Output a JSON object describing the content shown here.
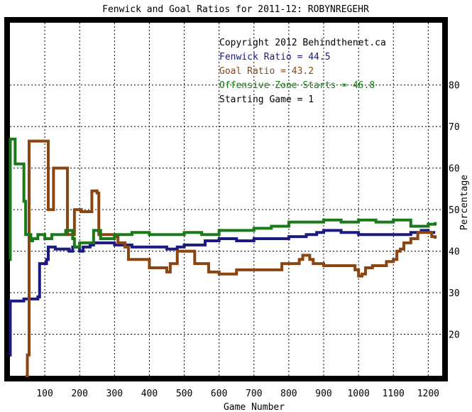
{
  "chart_data": {
    "type": "line",
    "title": "Fenwick and Goal Ratios for 2011-12: ROBYNREGEHR",
    "xlabel": "Game Number",
    "ylabel": "Percentage",
    "xlim": [
      0,
      1240
    ],
    "ylim": [
      10,
      95
    ],
    "x_ticks": [
      100,
      200,
      300,
      400,
      500,
      600,
      700,
      800,
      900,
      1000,
      1100,
      1200
    ],
    "y_ticks": [
      20,
      30,
      40,
      50,
      60,
      70,
      80
    ],
    "x_tick_labels": [
      "100",
      "200",
      "300",
      "400",
      "500",
      "600",
      "700",
      "800",
      "900",
      "1000",
      "1100",
      "1200"
    ],
    "y_tick_labels": [
      "20",
      "30",
      "40",
      "50",
      "60",
      "70",
      "80"
    ],
    "grid": true,
    "annotations": [
      {
        "text": "Copyright 2012 Behindthenet.ca",
        "color": "#000000"
      },
      {
        "text": "Fenwick Ratio = 44.5",
        "color": "#1a1a80"
      },
      {
        "text": "Goal Ratio = 43.2",
        "color": "#8b4513"
      },
      {
        "text": "Offensive Zone Starts = 46.8",
        "color": "#1a7a1a"
      },
      {
        "text": "Starting Game = 1",
        "color": "#000000"
      }
    ],
    "series": [
      {
        "color": "#1a1a80",
        "x": [
          0,
          1,
          35,
          40,
          80,
          85,
          105,
          110,
          130,
          140,
          170,
          180,
          200,
          210,
          230,
          240,
          300,
          350,
          400,
          450,
          480,
          500,
          560,
          600,
          650,
          700,
          750,
          800,
          850,
          880,
          900,
          950,
          1000,
          1050,
          1100,
          1150,
          1180,
          1200,
          1220
        ],
        "values": [
          15,
          28,
          28,
          28.5,
          29,
          37,
          38,
          41,
          40.5,
          40.5,
          40,
          41,
          40,
          41,
          41.5,
          42,
          41.5,
          41,
          41,
          40.5,
          41,
          41.5,
          42.5,
          43,
          42.5,
          43,
          43,
          43.5,
          44,
          44.5,
          45,
          44.5,
          44,
          44,
          44,
          44.5,
          45,
          44.5,
          44.5
        ]
      },
      {
        "color": "#8b4513",
        "x": [
          45,
          50,
          55,
          105,
          110,
          120,
          125,
          160,
          165,
          180,
          185,
          200,
          205,
          230,
          235,
          250,
          255,
          300,
          310,
          330,
          340,
          400,
          410,
          450,
          460,
          480,
          490,
          530,
          540,
          570,
          580,
          600,
          650,
          700,
          750,
          780,
          800,
          830,
          840,
          860,
          870,
          900,
          950,
          990,
          1000,
          1010,
          1020,
          1040,
          1050,
          1080,
          1100,
          1110,
          1120,
          1130,
          1150,
          1170,
          1190,
          1210,
          1220
        ],
        "values": [
          10,
          15,
          66.5,
          66.5,
          50,
          50,
          60,
          60,
          44,
          44,
          50,
          50,
          49.5,
          49.5,
          54.5,
          54,
          44,
          43.5,
          42,
          41,
          38,
          36,
          36,
          35,
          37,
          40,
          40,
          37,
          37,
          35,
          35,
          34.5,
          35.5,
          35.5,
          35.5,
          37,
          37,
          38,
          39,
          38,
          37,
          36.5,
          36.5,
          35.5,
          34,
          34.5,
          36,
          36.5,
          36.5,
          37.5,
          38,
          40,
          40.5,
          42,
          43,
          44.5,
          44.5,
          43.5,
          43
        ]
      },
      {
        "color": "#1a7a1a",
        "x": [
          0,
          1,
          10,
          15,
          35,
          40,
          45,
          55,
          60,
          65,
          80,
          100,
          120,
          160,
          180,
          185,
          200,
          220,
          240,
          260,
          280,
          300,
          350,
          400,
          450,
          500,
          550,
          600,
          650,
          700,
          750,
          800,
          850,
          900,
          950,
          1000,
          1050,
          1100,
          1150,
          1200,
          1220
        ],
        "values": [
          38,
          67,
          67,
          61,
          61,
          52,
          44,
          44,
          42.5,
          43,
          44,
          43,
          44,
          45,
          43,
          41,
          42,
          42,
          45,
          43,
          43,
          44,
          44.5,
          44,
          44,
          44.5,
          44,
          45,
          45,
          45.5,
          46,
          47,
          47,
          47.5,
          47,
          47.5,
          47,
          47.5,
          46,
          46.5,
          47
        ]
      }
    ]
  }
}
